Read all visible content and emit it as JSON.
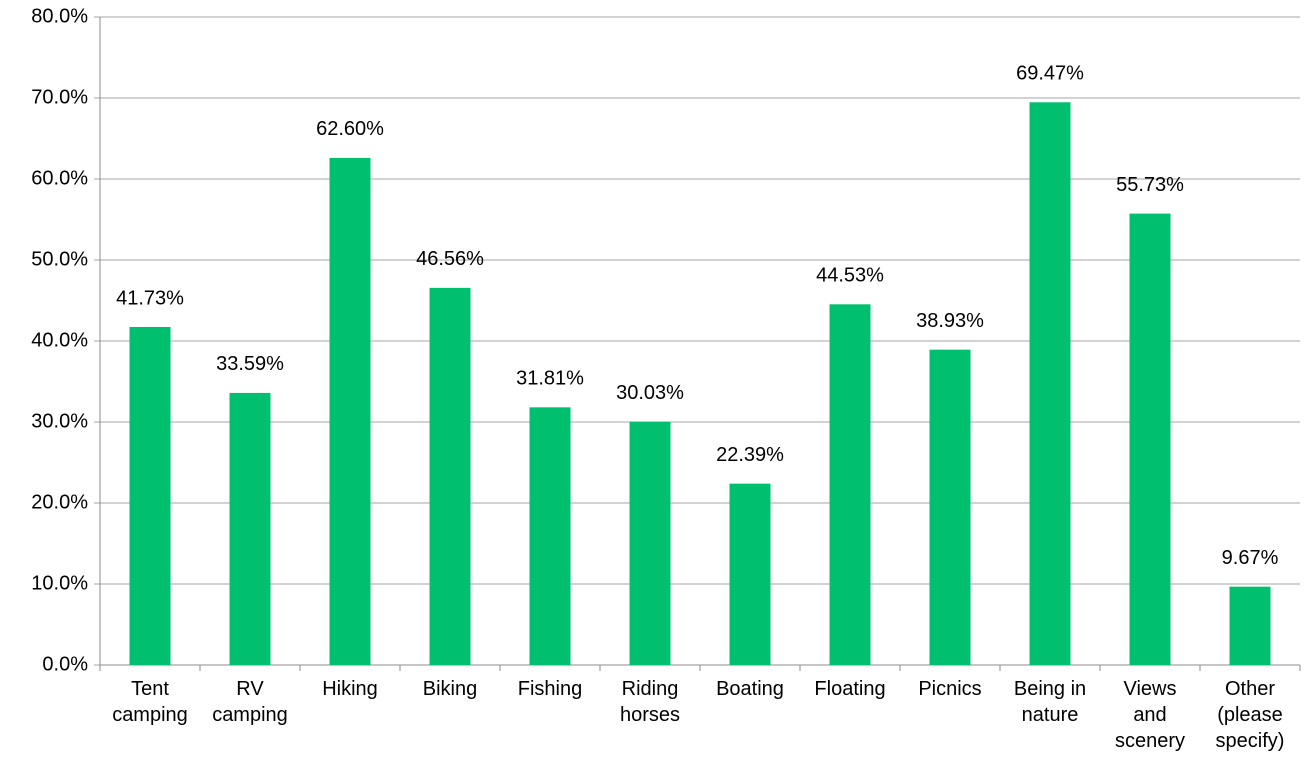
{
  "chart_data": {
    "type": "bar",
    "categories": [
      "Tent camping",
      "RV camping",
      "Hiking",
      "Biking",
      "Fishing",
      "Riding horses",
      "Boating",
      "Floating",
      "Picnics",
      "Being in nature",
      "Views and scenery",
      "Other (please specify)"
    ],
    "values": [
      41.73,
      33.59,
      62.6,
      46.56,
      31.81,
      30.03,
      22.39,
      44.53,
      38.93,
      69.47,
      55.73,
      9.67
    ],
    "value_labels": [
      "41.73%",
      "33.59%",
      "62.60%",
      "46.56%",
      "31.81%",
      "30.03%",
      "22.39%",
      "44.53%",
      "38.93%",
      "69.47%",
      "55.73%",
      "9.67%"
    ],
    "color": "#00bf6f",
    "ylim": [
      0,
      80
    ],
    "yticks": [
      {
        "value": 0,
        "label": "0.0%"
      },
      {
        "value": 10,
        "label": "10.0%"
      },
      {
        "value": 20,
        "label": "20.0%"
      },
      {
        "value": 30,
        "label": "30.0%"
      },
      {
        "value": 40,
        "label": "40.0%"
      },
      {
        "value": 50,
        "label": "50.0%"
      },
      {
        "value": 60,
        "label": "60.0%"
      },
      {
        "value": 70,
        "label": "70.0%"
      },
      {
        "value": 80,
        "label": "80.0%"
      }
    ],
    "grid": true
  }
}
